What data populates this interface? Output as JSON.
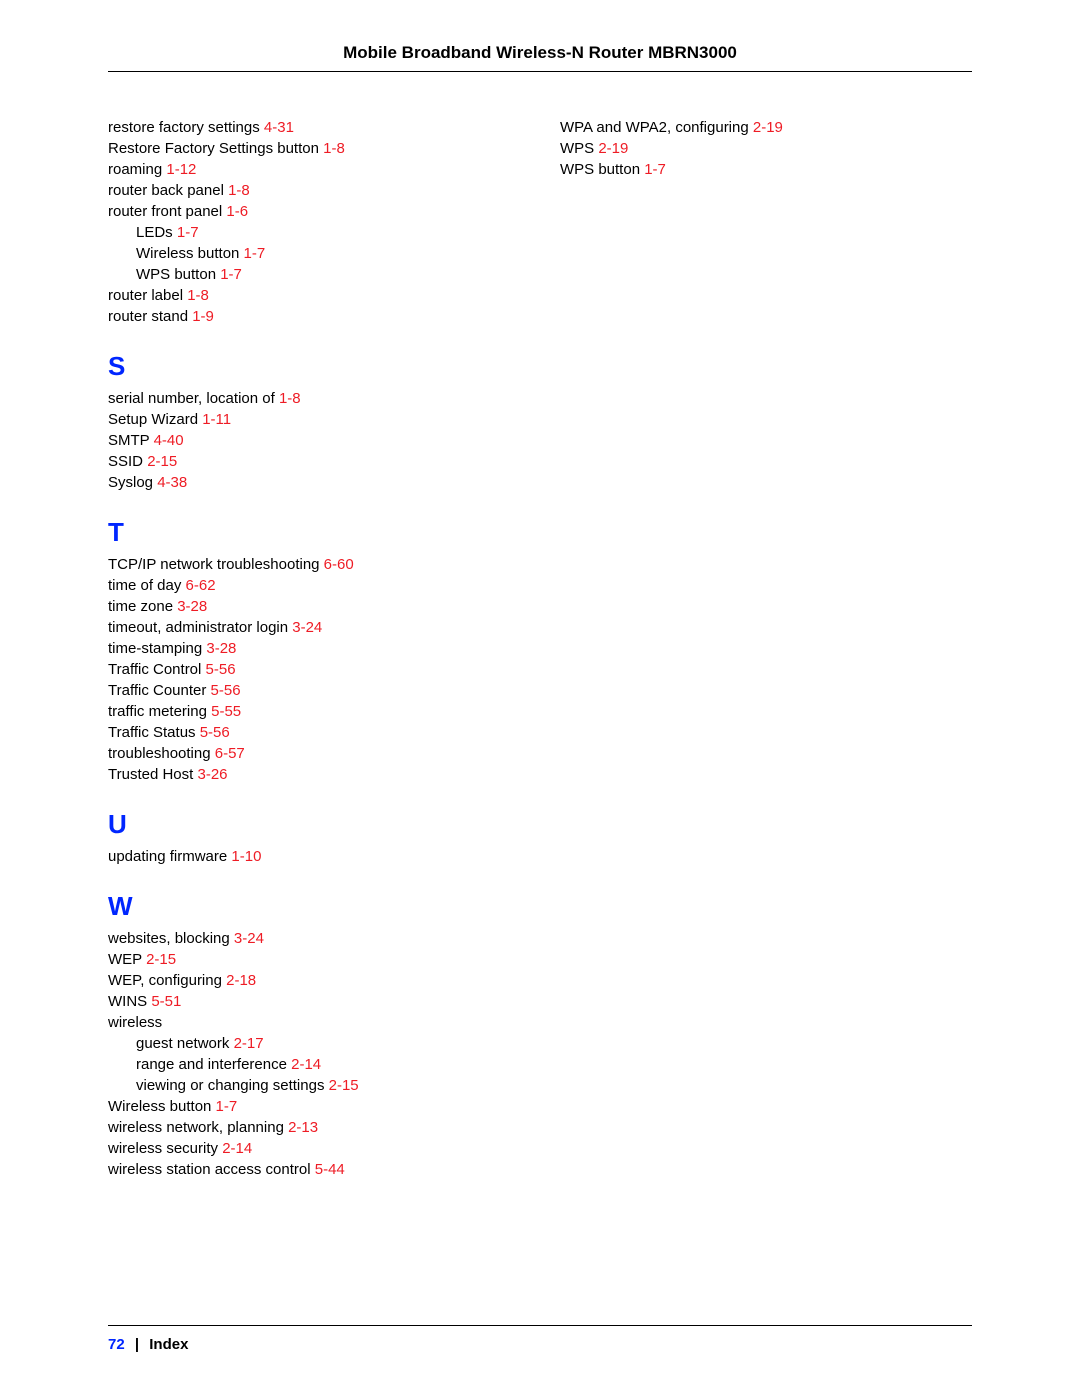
{
  "header": {
    "title": "Mobile Broadband Wireless-N Router MBRN3000"
  },
  "footer": {
    "page_number": "72",
    "section": "Index"
  },
  "colors": {
    "page_ref": "#ee1c25",
    "letter": "#0026ff",
    "text": "#000000"
  },
  "left_column": [
    {
      "kind": "entry",
      "text": "restore factory settings ",
      "ref": "4-31"
    },
    {
      "kind": "entry",
      "text": "Restore Factory Settings button ",
      "ref": "1-8"
    },
    {
      "kind": "entry",
      "text": "roaming ",
      "ref": "1-12"
    },
    {
      "kind": "entry",
      "text": "router back panel ",
      "ref": "1-8"
    },
    {
      "kind": "entry",
      "text": "router front panel ",
      "ref": "1-6"
    },
    {
      "kind": "sub",
      "text": "LEDs ",
      "ref": "1-7"
    },
    {
      "kind": "sub",
      "text": "Wireless button ",
      "ref": "1-7"
    },
    {
      "kind": "sub",
      "text": "WPS button ",
      "ref": "1-7"
    },
    {
      "kind": "entry",
      "text": "router label ",
      "ref": "1-8"
    },
    {
      "kind": "entry",
      "text": "router stand ",
      "ref": "1-9"
    },
    {
      "kind": "letter",
      "text": "S"
    },
    {
      "kind": "entry",
      "text": "serial number, location of ",
      "ref": "1-8"
    },
    {
      "kind": "entry",
      "text": "Setup Wizard ",
      "ref": "1-11"
    },
    {
      "kind": "entry",
      "text": "SMTP ",
      "ref": "4-40"
    },
    {
      "kind": "entry",
      "text": "SSID ",
      "ref": "2-15"
    },
    {
      "kind": "entry",
      "text": "Syslog ",
      "ref": "4-38"
    },
    {
      "kind": "letter",
      "text": "T"
    },
    {
      "kind": "entry",
      "text": "TCP/IP network troubleshooting ",
      "ref": "6-60"
    },
    {
      "kind": "entry",
      "text": "time of day ",
      "ref": "6-62"
    },
    {
      "kind": "entry",
      "text": "time zone ",
      "ref": "3-28"
    },
    {
      "kind": "entry",
      "text": "timeout, administrator login ",
      "ref": "3-24"
    },
    {
      "kind": "entry",
      "text": "time-stamping ",
      "ref": "3-28"
    },
    {
      "kind": "entry",
      "text": "Traffic Control ",
      "ref": "5-56"
    },
    {
      "kind": "entry",
      "text": "Traffic Counter ",
      "ref": "5-56"
    },
    {
      "kind": "entry",
      "text": "traffic metering ",
      "ref": "5-55"
    },
    {
      "kind": "entry",
      "text": "Traffic Status ",
      "ref": "5-56"
    },
    {
      "kind": "entry",
      "text": "troubleshooting ",
      "ref": "6-57"
    },
    {
      "kind": "entry",
      "text": "Trusted Host ",
      "ref": "3-26"
    },
    {
      "kind": "letter",
      "text": "U"
    },
    {
      "kind": "entry",
      "text": "updating firmware ",
      "ref": "1-10"
    },
    {
      "kind": "letter",
      "text": "W"
    },
    {
      "kind": "entry",
      "text": "websites, blocking ",
      "ref": "3-24"
    },
    {
      "kind": "entry",
      "text": "WEP ",
      "ref": "2-15"
    },
    {
      "kind": "entry",
      "text": "WEP, configuring ",
      "ref": "2-18"
    },
    {
      "kind": "entry",
      "text": "WINS ",
      "ref": "5-51"
    },
    {
      "kind": "entry",
      "text": "wireless",
      "ref": ""
    },
    {
      "kind": "sub",
      "text": "guest network ",
      "ref": "2-17"
    },
    {
      "kind": "sub",
      "text": "range and interference ",
      "ref": "2-14"
    },
    {
      "kind": "sub",
      "text": "viewing or changing settings ",
      "ref": "2-15"
    },
    {
      "kind": "entry",
      "text": "Wireless button ",
      "ref": "1-7"
    },
    {
      "kind": "entry",
      "text": "wireless network, planning ",
      "ref": "2-13"
    },
    {
      "kind": "entry",
      "text": "wireless security ",
      "ref": "2-14"
    },
    {
      "kind": "entry",
      "text": "wireless station access control ",
      "ref": "5-44"
    }
  ],
  "right_column": [
    {
      "kind": "entry",
      "text": "WPA and WPA2, configuring ",
      "ref": "2-19"
    },
    {
      "kind": "entry",
      "text": "WPS ",
      "ref": "2-19"
    },
    {
      "kind": "entry",
      "text": "WPS button ",
      "ref": "1-7"
    }
  ]
}
